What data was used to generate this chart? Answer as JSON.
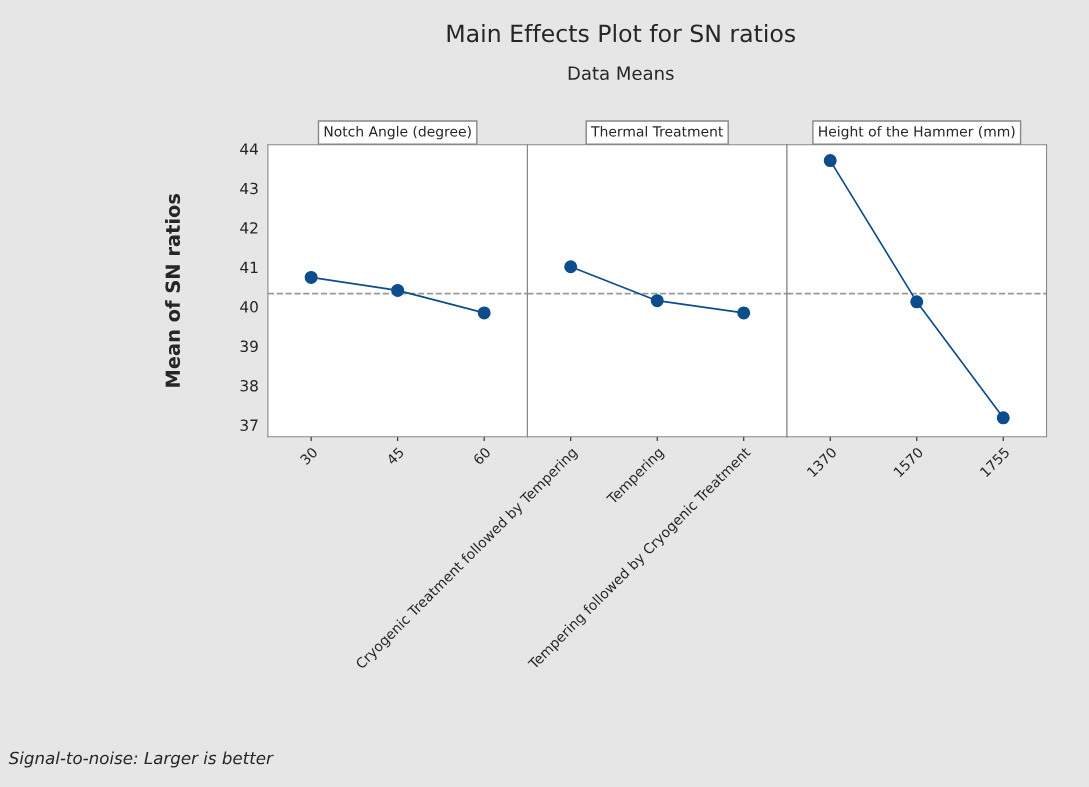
{
  "chart_data": [
    {
      "type": "other",
      "title": "Main Effects Plot for SN ratios",
      "subtitle": "Data Means",
      "annotations": [
        "Signal-to-noise: Larger is better"
      ]
    },
    {
      "type": "line",
      "title": "Notch Angle (degree)",
      "ylabel": "Mean of SN ratios",
      "categories": [
        "30",
        "45",
        "60"
      ],
      "series": [
        {
          "color": "#0e4d8c",
          "values": [
            40.74,
            40.41,
            39.84
          ]
        }
      ],
      "ylim": [
        36.7,
        44.1
      ],
      "yticks": [
        37,
        38,
        39,
        40,
        41,
        42,
        43,
        44
      ],
      "marker": "circle",
      "ref_lines": [
        {
          "axis": "y",
          "value": 40.33,
          "color": "#999999",
          "line_style": "dashed"
        }
      ]
    },
    {
      "type": "line",
      "title": "Thermal Treatment",
      "categories": [
        "Cryogenic Treatment followed by Tempering",
        "Tempering",
        "Tempering followed by Cryogenic Treatment"
      ],
      "series": [
        {
          "color": "#0e4d8c",
          "values": [
            41.01,
            40.15,
            39.84
          ]
        }
      ],
      "ylim": [
        36.7,
        44.1
      ],
      "tick_labels": "x",
      "marker": "circle",
      "ref_lines": [
        {
          "axis": "y",
          "value": 40.33,
          "color": "#999999",
          "line_style": "dashed"
        }
      ]
    },
    {
      "type": "line",
      "title": "Height of the Hammer (mm)",
      "categories": [
        "1370",
        "1570",
        "1755"
      ],
      "series": [
        {
          "color": "#0e4d8c",
          "values": [
            43.7,
            40.12,
            37.18
          ]
        }
      ],
      "ylim": [
        36.7,
        44.1
      ],
      "tick_labels": "x",
      "marker": "circle",
      "ref_lines": [
        {
          "axis": "y",
          "value": 40.33,
          "color": "#999999",
          "line_style": "dashed"
        }
      ]
    }
  ]
}
